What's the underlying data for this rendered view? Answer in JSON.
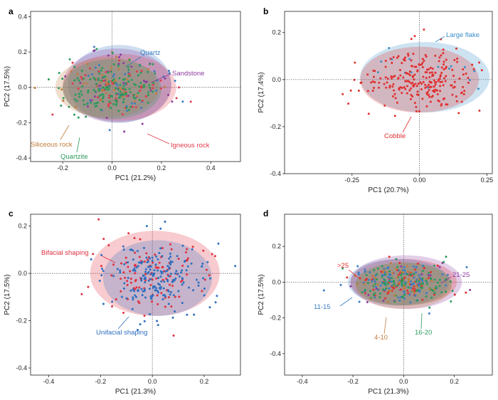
{
  "chart_data": [
    {
      "panel": "a",
      "type": "scatter",
      "xlabel": "PC1 (21.2%)",
      "ylabel": "PC2 (17.5%)",
      "xlim": [
        -0.33,
        0.52
      ],
      "ylim": [
        -0.42,
        0.43
      ],
      "xticks": [
        -0.2,
        0,
        0.2,
        0.4
      ],
      "xtick_labels": [
        "-0.2",
        "0.0",
        "0.2",
        "0.4"
      ],
      "yticks": [
        0.4,
        0.2,
        0,
        -0.2,
        -0.4
      ],
      "ytick_labels": [
        "0.4",
        "0.2",
        "0.0",
        "-0.2",
        "-0.4"
      ],
      "grid": false,
      "groups": [
        {
          "name": "Quartz",
          "color": "#3a7dc0",
          "ellipse": {
            "cx": 0.03,
            "cy": 0.02,
            "rx": 0.21,
            "ry": 0.22
          },
          "n_points": 40
        },
        {
          "name": "Sandstone",
          "color": "#8c3ca0",
          "ellipse": {
            "cx": 0.02,
            "cy": 0.01,
            "rx": 0.22,
            "ry": 0.21
          },
          "n_points": 40
        },
        {
          "name": "Igneous rock",
          "color": "#e03b4d",
          "ellipse": {
            "cx": 0.03,
            "cy": 0.0,
            "rx": 0.23,
            "ry": 0.19
          },
          "n_points": 60
        },
        {
          "name": "Siliceous rock",
          "color": "#c07c3a",
          "ellipse": {
            "cx": -0.02,
            "cy": 0.0,
            "rx": 0.21,
            "ry": 0.17
          },
          "n_points": 40
        },
        {
          "name": "Quartzite",
          "color": "#2a9a5a",
          "ellipse": {
            "cx": 0.0,
            "cy": -0.01,
            "rx": 0.2,
            "ry": 0.17
          },
          "n_points": 150
        }
      ]
    },
    {
      "panel": "b",
      "type": "scatter",
      "xlabel": "PC1 (20.7%)",
      "ylabel": "PC2 (17.4%)",
      "xlim": [
        -0.5,
        0.27
      ],
      "ylim": [
        -0.4,
        0.29
      ],
      "xticks": [
        -0.25,
        0,
        0.25
      ],
      "xtick_labels": [
        "-0.25",
        "0.00",
        "0.25"
      ],
      "yticks": [
        0.2,
        0,
        -0.2,
        -0.4
      ],
      "ytick_labels": [
        "0.2",
        "0.0",
        "-0.2",
        "-0.4"
      ],
      "grid": false,
      "groups": [
        {
          "name": "Large flake",
          "color": "#3a8fc8",
          "ellipse": {
            "cx": 0.02,
            "cy": 0.01,
            "rx": 0.24,
            "ry": 0.15
          },
          "n_points": 15
        },
        {
          "name": "Cobble",
          "color": "#e03030",
          "ellipse": {
            "cx": 0.0,
            "cy": 0.0,
            "rx": 0.22,
            "ry": 0.14
          },
          "n_points": 250
        }
      ]
    },
    {
      "panel": "c",
      "type": "scatter",
      "xlabel": "PC1 (21.3%)",
      "ylabel": "PC2 (17.5%)",
      "xlim": [
        -0.47,
        0.34
      ],
      "ylim": [
        -0.43,
        0.25
      ],
      "xticks": [
        -0.4,
        -0.2,
        0,
        0.2
      ],
      "xtick_labels": [
        "-0.4",
        "-0.2",
        "0.0",
        "0.2"
      ],
      "yticks": [
        0.2,
        0,
        -0.2,
        -0.4
      ],
      "ytick_labels": [
        "0.2",
        "0.0",
        "-0.2",
        "-0.4"
      ],
      "grid": false,
      "groups": [
        {
          "name": "Bifacial shaping",
          "color": "#e03040",
          "ellipse": {
            "cx": 0.01,
            "cy": 0.0,
            "rx": 0.25,
            "ry": 0.18
          },
          "n_points": 120
        },
        {
          "name": "Unifacial shaping",
          "color": "#2f6fc0",
          "ellipse": {
            "cx": 0.02,
            "cy": -0.02,
            "rx": 0.21,
            "ry": 0.16
          },
          "n_points": 200
        }
      ]
    },
    {
      "panel": "d",
      "type": "scatter",
      "xlabel": "PC1 (21.3%)",
      "ylabel": "PC2 (17.5%)",
      "xlim": [
        -0.47,
        0.35
      ],
      "ylim": [
        -0.52,
        0.38
      ],
      "xticks": [
        -0.4,
        -0.2,
        0,
        0.2
      ],
      "xtick_labels": [
        "-0.4",
        "-0.2",
        "0.0",
        "0.2"
      ],
      "yticks": [
        0.2,
        0,
        -0.2,
        -0.4
      ],
      "ytick_labels": [
        "0.2",
        "0.0",
        "-0.2",
        "-0.4"
      ],
      "grid": false,
      "groups": [
        {
          "name": "21-25",
          "color": "#8c3ca0",
          "ellipse": {
            "cx": 0.01,
            "cy": 0.0,
            "rx": 0.22,
            "ry": 0.15
          },
          "n_points": 20
        },
        {
          "name": ">25",
          "color": "#e03030",
          "ellipse": {
            "cx": 0.0,
            "cy": 0.0,
            "rx": 0.21,
            "ry": 0.13
          },
          "n_points": 60
        },
        {
          "name": "11-15",
          "color": "#3a7dc0",
          "ellipse": {
            "cx": -0.02,
            "cy": 0.0,
            "rx": 0.2,
            "ry": 0.13
          },
          "n_points": 100
        },
        {
          "name": "16-20",
          "color": "#2a9a5a",
          "ellipse": {
            "cx": 0.0,
            "cy": -0.01,
            "rx": 0.19,
            "ry": 0.12
          },
          "n_points": 100
        },
        {
          "name": "4-10",
          "color": "#c07c3a",
          "ellipse": {
            "cx": 0.0,
            "cy": -0.02,
            "rx": 0.19,
            "ry": 0.13
          },
          "n_points": 40
        }
      ]
    }
  ]
}
